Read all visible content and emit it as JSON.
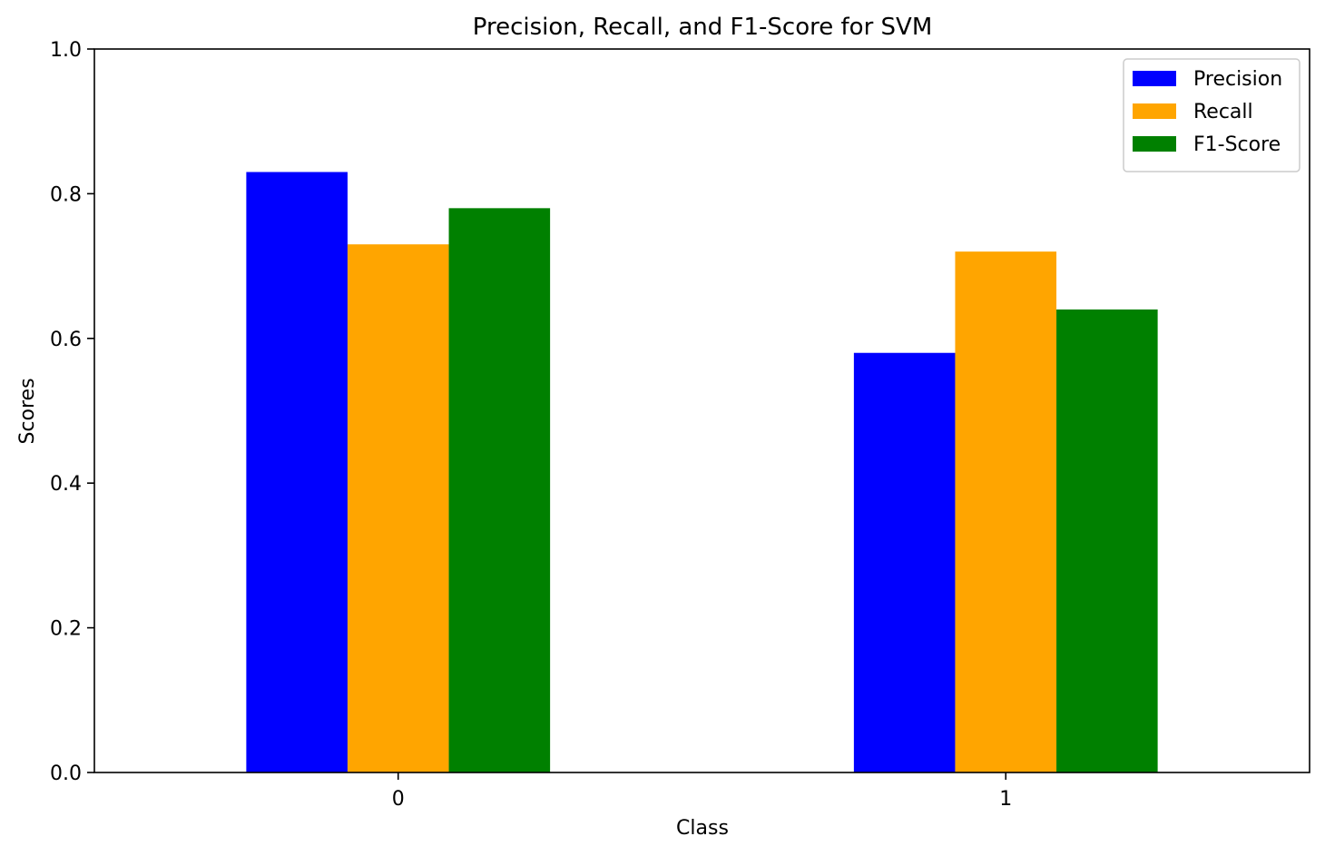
{
  "chart_data": {
    "type": "bar",
    "title": "Precision, Recall, and F1-Score for SVM",
    "xlabel": "Class",
    "ylabel": "Scores",
    "categories": [
      "0",
      "1"
    ],
    "ylim": [
      0,
      1.0
    ],
    "yticks": [
      "0.0",
      "0.2",
      "0.4",
      "0.6",
      "0.8",
      "1.0"
    ],
    "grid": false,
    "legend_position": "top-right",
    "series": [
      {
        "name": "Precision",
        "color": "#0000ff",
        "values": [
          0.83,
          0.58
        ]
      },
      {
        "name": "Recall",
        "color": "#ffa500",
        "values": [
          0.73,
          0.72
        ]
      },
      {
        "name": "F1-Score",
        "color": "#008000",
        "values": [
          0.78,
          0.64
        ]
      }
    ]
  }
}
